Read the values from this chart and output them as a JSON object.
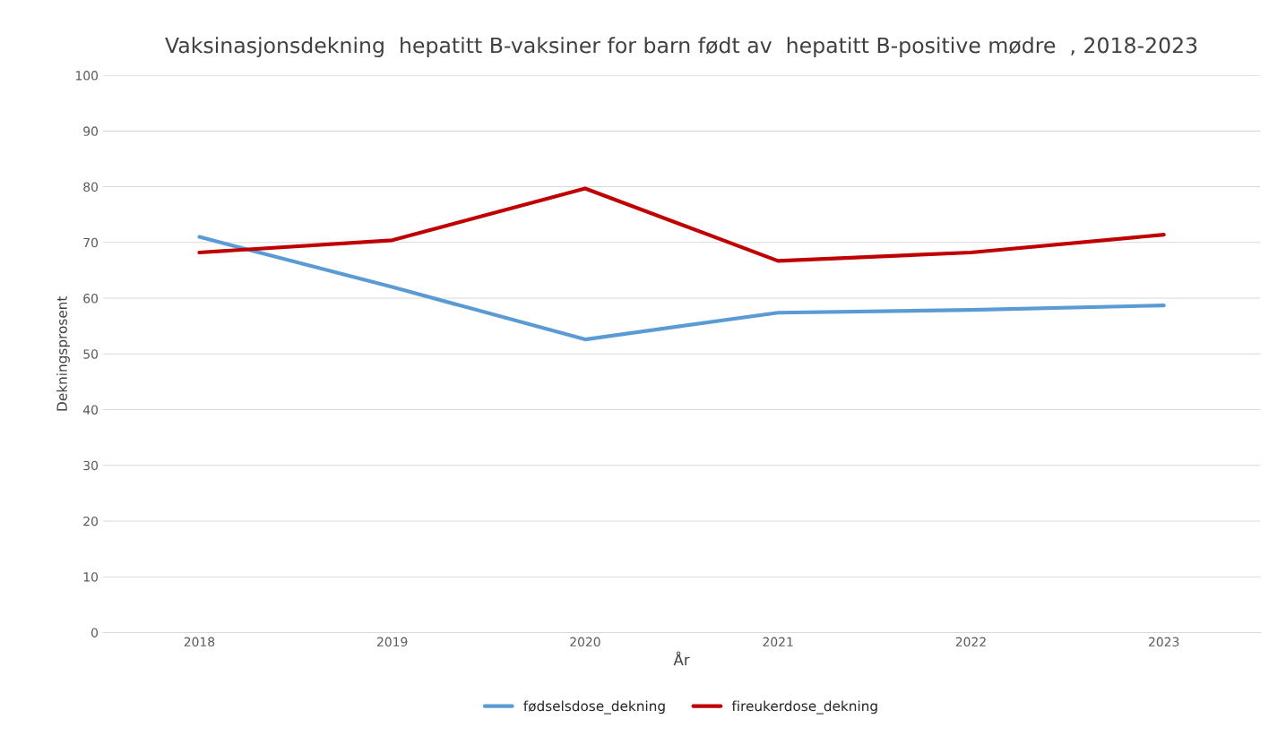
{
  "chart_data": {
    "type": "line",
    "title": "Vaksinasjonsdekning  hepatitt B-vaksiner for barn født av  hepatitt B-positive mødre  , 2018-2023",
    "xlabel": "År",
    "ylabel": "Dekningsprosent",
    "categories": [
      "2018",
      "2019",
      "2020",
      "2021",
      "2022",
      "2023"
    ],
    "series": [
      {
        "name": "fødselsdose_dekning",
        "color": "#5b9bd5",
        "values": [
          71,
          62,
          52.6,
          57.4,
          57.9,
          58.7
        ]
      },
      {
        "name": "fireukerdose_dekning",
        "color": "#c00000",
        "values": [
          68.2,
          70.4,
          79.7,
          66.7,
          68.2,
          71.4
        ]
      }
    ],
    "ylim": [
      0,
      100
    ],
    "yticks": [
      0,
      10,
      20,
      30,
      40,
      50,
      60,
      70,
      80,
      90,
      100
    ],
    "grid": "y",
    "legend": "bottom",
    "line_style": "solid",
    "marker": "none"
  }
}
